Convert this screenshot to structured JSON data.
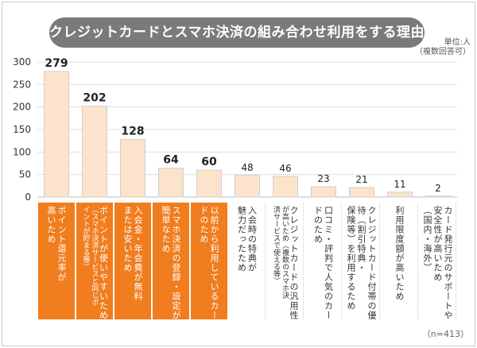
{
  "title": "クレジットカードとスマホ決済の組み合わせ利用をする理由",
  "unit": [
    "単位:人",
    "（複数回答可）"
  ],
  "note": "（n=413）",
  "colors": {
    "bar": "#fbe3cc",
    "bar_stroke": "#cfcfcf",
    "highlight": "#f07d1e",
    "grid": "#dddddd",
    "axis_text": "#333333"
  },
  "chart_data": {
    "type": "bar",
    "ylim": [
      0,
      300
    ],
    "yticks": [
      0,
      50,
      100,
      150,
      200,
      250,
      300
    ],
    "grid": true,
    "highlight_count": 5,
    "categories": [
      [
        [
          "ポイント還元率が",
          "normal"
        ],
        [
          "高いため",
          "normal"
        ]
      ],
      [
        [
          "ポイントが使いやすいため",
          "normal"
        ],
        [
          "（スマホ決済サービスと同じポ",
          "small"
        ],
        [
          "イントが貯まる等）",
          "small"
        ]
      ],
      [
        [
          "入会金・年会費が無料",
          "normal"
        ],
        [
          "または安いため",
          "normal"
        ]
      ],
      [
        [
          "スマホ決済の登録・設定が",
          "normal"
        ],
        [
          "簡単なため",
          "normal"
        ]
      ],
      [
        [
          "以前から利用しているカー",
          "normal"
        ],
        [
          "ドのため",
          "normal"
        ]
      ],
      [
        [
          "入会時の特典が",
          "normal"
        ],
        [
          "魅力だったため",
          "normal"
        ]
      ],
      [
        [
          "クレジットカードの汎用性",
          "normal"
        ],
        [
          "が高いため（複数のスマホ決",
          "small"
        ],
        [
          "済サービスで使える等）",
          "small"
        ]
      ],
      [
        [
          "口コミ・評判で人気のカー",
          "normal"
        ],
        [
          "ドのため",
          "normal"
        ]
      ],
      [
        [
          "クレジットカード付帯の優",
          "normal"
        ],
        [
          "待（割引特典・",
          "normal"
        ],
        [
          "保険等）を利用するため",
          "normal"
        ]
      ],
      [
        [
          "利用限度額が高いため",
          "normal"
        ]
      ],
      [
        [
          "カード発行元のサポートや",
          "normal"
        ],
        [
          "安全性が高いため",
          "normal"
        ],
        [
          "（国内・海外）",
          "normal"
        ]
      ]
    ],
    "values": [
      279,
      202,
      128,
      64,
      60,
      48,
      46,
      23,
      21,
      11,
      2
    ]
  }
}
